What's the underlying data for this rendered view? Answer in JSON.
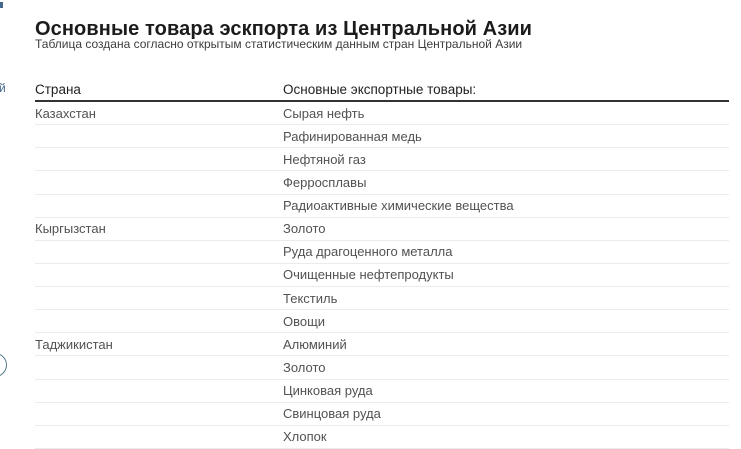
{
  "page": {
    "title": "Основные товара эскпорта из Центральной Азии",
    "subtitle": "Таблица создана согласно открытым статистическим данным стран Центральной Азии"
  },
  "table": {
    "headers": [
      "Страна",
      "Основные экспортные товары:"
    ],
    "groups": [
      {
        "country": "Казахстан",
        "goods": [
          "Сырая нефть",
          "Рафинированная медь",
          "Нефтяной газ",
          "Ферросплавы",
          "Радиоактивные химические вещества"
        ]
      },
      {
        "country": "Кыргызстан",
        "goods": [
          "Золото",
          "Руда драгоценного металла",
          "Очищенные нефтепродукты",
          "Текстиль",
          "Овощи"
        ]
      },
      {
        "country": "Таджикистан",
        "goods": [
          "Алюминий",
          "Золото",
          "Цинковая руда",
          "Свинцовая руда",
          "Хлопок"
        ]
      }
    ]
  },
  "edge": {
    "fragment_char": "й"
  },
  "colors": {
    "title_text": "#1b1b1b",
    "cell_text": "#525252",
    "header_rule": "#333333",
    "row_divider": "#ebebeb",
    "link_fragment_blue": "#44688e",
    "circle_arc": "#567a8b"
  },
  "chart_data": {
    "type": "table",
    "title": "Основные товара эскпорта из Центральной Азии",
    "subtitle": "Таблица создана согласно открытым статистическим данным стран Центральной Азии",
    "columns": [
      "Страна",
      "Основные экспортные товары:"
    ],
    "rows": [
      [
        "Казахстан",
        "Сырая нефть"
      ],
      [
        "",
        "Рафинированная медь"
      ],
      [
        "",
        "Нефтяной газ"
      ],
      [
        "",
        "Ферросплавы"
      ],
      [
        "",
        "Радиоактивные химические вещества"
      ],
      [
        "Кыргызстан",
        "Золото"
      ],
      [
        "",
        "Руда драгоценного металла"
      ],
      [
        "",
        "Очищенные нефтепродукты"
      ],
      [
        "",
        "Текстиль"
      ],
      [
        "",
        "Овощи"
      ],
      [
        "Таджикистан",
        "Алюминий"
      ],
      [
        "",
        "Золото"
      ],
      [
        "",
        "Цинковая руда"
      ],
      [
        "",
        "Свинцовая руда"
      ],
      [
        "",
        "Хлопок"
      ]
    ],
    "layout": {
      "legend": false,
      "grid": "horizontal-row-dividers"
    }
  }
}
